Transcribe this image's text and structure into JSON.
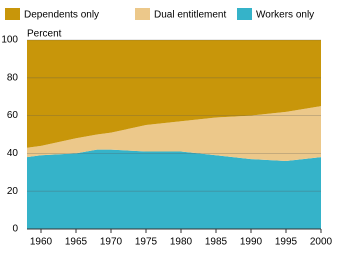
{
  "chart_data": {
    "type": "stacked-area",
    "y_label": "Percent",
    "x": [
      1958,
      1960,
      1965,
      1968,
      1970,
      1975,
      1980,
      1985,
      1990,
      1995,
      2000
    ],
    "series": [
      {
        "name": "Workers only",
        "color": "#35b3c9",
        "values": [
          38,
          39,
          40,
          42,
          42,
          41,
          41,
          39,
          37,
          36,
          38
        ]
      },
      {
        "name": "Dual entitlement",
        "color": "#ecc88a",
        "values": [
          5,
          5,
          8,
          8,
          9,
          14,
          16,
          20,
          23,
          26,
          27
        ]
      },
      {
        "name": "Dependents only",
        "color": "#c8960a",
        "values": [
          57,
          56,
          52,
          50,
          49,
          45,
          43,
          41,
          40,
          38,
          35
        ]
      }
    ],
    "xlim": [
      1958,
      2000
    ],
    "xticks": [
      1960,
      1965,
      1970,
      1975,
      1980,
      1985,
      1990,
      1995,
      2000
    ],
    "ylim": [
      0,
      100
    ],
    "yticks": [
      0,
      20,
      40,
      60,
      80,
      100
    ],
    "grid": true
  }
}
